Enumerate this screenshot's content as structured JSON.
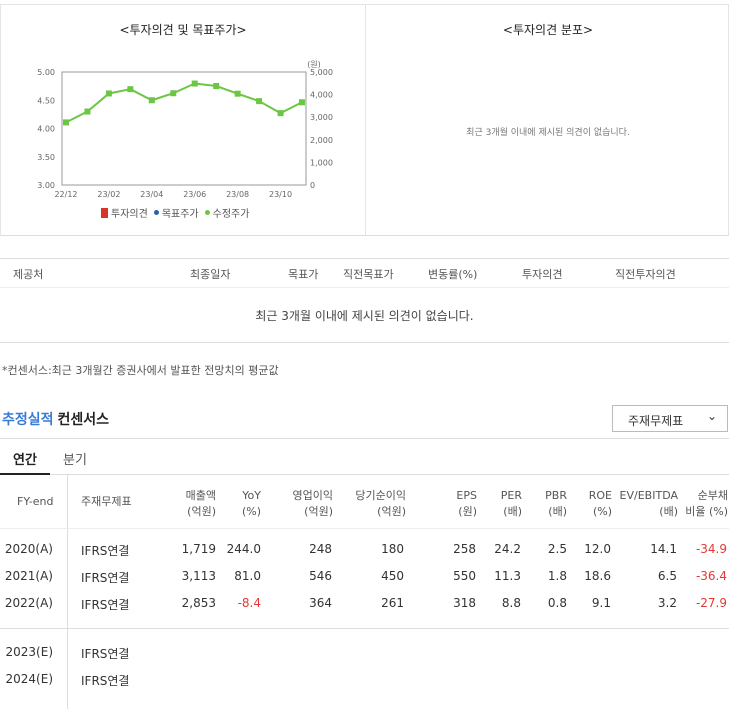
{
  "opinion_panel": {
    "title": "<투자의견 및 목표주가>",
    "unit_right": "(원)",
    "legend": [
      {
        "label": "투자의견",
        "color": "#d9342b",
        "shape": "bar"
      },
      {
        "label": "목표주가",
        "color": "#2f5fb3",
        "shape": "dot"
      },
      {
        "label": "수정주가",
        "color": "#6cc644",
        "shape": "dot"
      }
    ]
  },
  "chart_data": {
    "type": "line",
    "x": [
      "22/12",
      "23/01",
      "23/02",
      "23/03",
      "23/04",
      "23/05",
      "23/06",
      "23/07",
      "23/08",
      "23/09",
      "23/10",
      "23/11"
    ],
    "x_tick_labels": [
      "22/12",
      "23/02",
      "23/04",
      "23/06",
      "23/08",
      "23/10"
    ],
    "left_axis": {
      "ylim": [
        3.0,
        5.0
      ],
      "ticks": [
        "3.00",
        "3.50",
        "4.00",
        "4.50",
        "5.00"
      ]
    },
    "right_axis": {
      "ylim": [
        0,
        5000
      ],
      "ticks": [
        "0",
        "1,000",
        "2,000",
        "3,000",
        "4,000",
        "5,000"
      ],
      "unit": "(원)"
    },
    "series": [
      {
        "name": "수정주가",
        "axis": "right",
        "color": "#6cc644",
        "values": [
          2770,
          3250,
          4050,
          4240,
          3750,
          4060,
          4490,
          4380,
          4040,
          3710,
          3180,
          3660
        ]
      }
    ],
    "grid": false
  },
  "distribution_panel": {
    "title": "<투자의견 분포>",
    "empty_message": "최근 3개월 이내에 제시된 의견이 없습니다."
  },
  "opinion_table": {
    "headers": [
      "제공처",
      "최종일자",
      "목표가",
      "직전목표가",
      "변동률(%)",
      "투자의견",
      "직전투자의견"
    ],
    "empty_message": "최근 3개월 이내에 제시된 의견이 없습니다."
  },
  "footnote": "*컨센서스:최근 3개월간 증권사에서 발표한 전망치의 평균값",
  "estimates": {
    "title_accent": "추정실적",
    "title_rest": "컨센서스",
    "dropdown_value": "주재무제표",
    "tabs": [
      "연간",
      "분기"
    ],
    "headers": {
      "fy": "FY-end",
      "basis": "주재무제표",
      "sales": [
        "매출액",
        "(억원)"
      ],
      "yoy": [
        "YoY",
        "(%)"
      ],
      "op": [
        "영업이익",
        "(억원)"
      ],
      "net": [
        "당기순이익",
        "(억원)"
      ],
      "eps": [
        "EPS",
        "(원)"
      ],
      "per": [
        "PER",
        "(배)"
      ],
      "pbr": [
        "PBR",
        "(배)"
      ],
      "roe": [
        "ROE",
        "(%)"
      ],
      "ev": [
        "EV/EBITDA",
        "(배)"
      ],
      "debt": [
        "순부채",
        "비율 (%)"
      ]
    },
    "rows": [
      {
        "fy": "2020(A)",
        "basis": "IFRS연결",
        "sales": "1,719",
        "yoy": "244.0",
        "op": "248",
        "net": "180",
        "eps": "258",
        "per": "24.2",
        "pbr": "2.5",
        "roe": "12.0",
        "ev": "14.1",
        "debt": "-34.9"
      },
      {
        "fy": "2021(A)",
        "basis": "IFRS연결",
        "sales": "3,113",
        "yoy": "81.0",
        "op": "546",
        "net": "450",
        "eps": "550",
        "per": "11.3",
        "pbr": "1.8",
        "roe": "18.6",
        "ev": "6.5",
        "debt": "-36.4"
      },
      {
        "fy": "2022(A)",
        "basis": "IFRS연결",
        "sales": "2,853",
        "yoy": "-8.4",
        "op": "364",
        "net": "261",
        "eps": "318",
        "per": "8.8",
        "pbr": "0.8",
        "roe": "9.1",
        "ev": "3.2",
        "debt": "-27.9"
      },
      {
        "fy": "2023(E)",
        "basis": "IFRS연결"
      },
      {
        "fy": "2024(E)",
        "basis": "IFRS연결"
      }
    ]
  }
}
